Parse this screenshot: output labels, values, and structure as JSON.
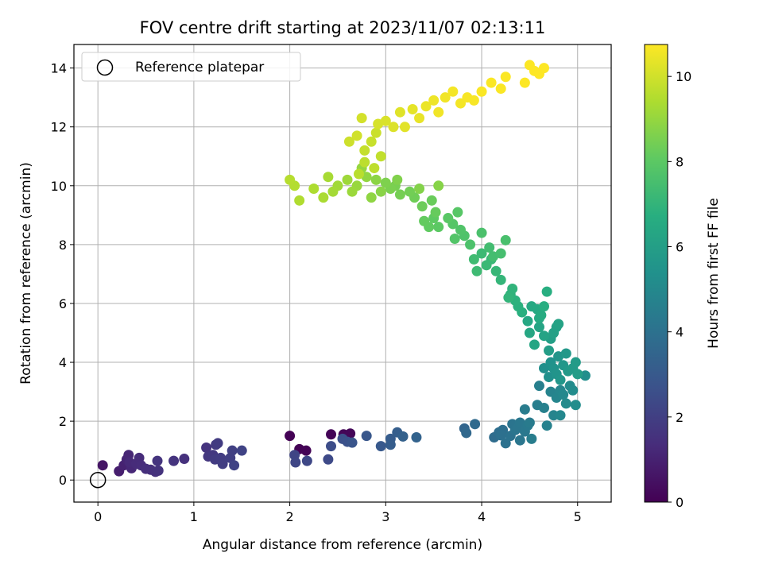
{
  "chart_data": {
    "type": "scatter",
    "title": "FOV centre drift starting at 2023/11/07 02:13:11",
    "xlabel": "Angular distance from reference (arcmin)",
    "ylabel": "Rotation from reference (arcmin)",
    "xlim": [
      -0.25,
      5.35
    ],
    "ylim": [
      -0.75,
      14.8
    ],
    "x_ticks": [
      0,
      1,
      2,
      3,
      4,
      5
    ],
    "y_ticks": [
      0,
      2,
      4,
      6,
      8,
      10,
      12,
      14
    ],
    "grid": true,
    "legend": {
      "label": "Reference platepar",
      "placement": "top-left",
      "marker": "open circle"
    },
    "reference_point": {
      "x": 0,
      "y": 0
    },
    "colorbar": {
      "label": "Hours from first FF file",
      "colormap": "viridis",
      "range": [
        0,
        10.75
      ],
      "ticks": [
        0,
        2,
        4,
        6,
        8,
        10
      ]
    },
    "points": [
      [
        2.0,
        1.5,
        0.02
      ],
      [
        2.1,
        1.05,
        0.05
      ],
      [
        2.17,
        1.0,
        0.08
      ],
      [
        2.43,
        1.55,
        0.1
      ],
      [
        2.56,
        1.55,
        0.12
      ],
      [
        2.63,
        1.58,
        0.15
      ],
      [
        0.05,
        0.5,
        0.6
      ],
      [
        0.22,
        0.3,
        0.9
      ],
      [
        0.27,
        0.5,
        1.0
      ],
      [
        0.3,
        0.7,
        1.1
      ],
      [
        0.32,
        0.85,
        1.15
      ],
      [
        0.35,
        0.4,
        1.2
      ],
      [
        0.33,
        0.6,
        1.25
      ],
      [
        0.4,
        0.55,
        1.3
      ],
      [
        0.43,
        0.75,
        1.3
      ],
      [
        0.45,
        0.5,
        1.35
      ],
      [
        0.5,
        0.38,
        1.4
      ],
      [
        0.55,
        0.35,
        1.45
      ],
      [
        0.6,
        0.28,
        1.5
      ],
      [
        0.63,
        0.32,
        1.55
      ],
      [
        0.62,
        0.65,
        1.6
      ],
      [
        0.79,
        0.65,
        1.6
      ],
      [
        0.9,
        0.72,
        1.5
      ],
      [
        1.13,
        1.1,
        1.6
      ],
      [
        1.15,
        0.8,
        1.7
      ],
      [
        1.2,
        0.85,
        1.75
      ],
      [
        1.23,
        1.2,
        1.8
      ],
      [
        1.25,
        1.25,
        1.85
      ],
      [
        1.22,
        0.7,
        1.85
      ],
      [
        1.28,
        0.75,
        1.9
      ],
      [
        1.3,
        0.55,
        1.95
      ],
      [
        1.38,
        0.75,
        2.0
      ],
      [
        1.4,
        1.0,
        2.05
      ],
      [
        1.42,
        0.5,
        2.1
      ],
      [
        1.5,
        1.0,
        2.15
      ],
      [
        2.05,
        0.85,
        2.2
      ],
      [
        2.06,
        0.6,
        2.25
      ],
      [
        2.18,
        0.65,
        2.3
      ],
      [
        2.4,
        0.7,
        2.4
      ],
      [
        2.43,
        1.15,
        2.5
      ],
      [
        2.55,
        1.4,
        2.6
      ],
      [
        2.6,
        1.3,
        2.7
      ],
      [
        2.65,
        1.27,
        2.8
      ],
      [
        2.8,
        1.5,
        2.9
      ],
      [
        2.95,
        1.15,
        3.0
      ],
      [
        3.05,
        1.4,
        3.1
      ],
      [
        3.05,
        1.2,
        3.15
      ],
      [
        3.12,
        1.62,
        3.2
      ],
      [
        3.18,
        1.48,
        3.3
      ],
      [
        3.32,
        1.45,
        3.4
      ],
      [
        3.82,
        1.75,
        3.5
      ],
      [
        3.84,
        1.6,
        3.6
      ],
      [
        3.93,
        1.9,
        3.7
      ],
      [
        4.13,
        1.45,
        3.8
      ],
      [
        4.18,
        1.62,
        3.85
      ],
      [
        4.22,
        1.7,
        3.9
      ],
      [
        4.2,
        1.52,
        3.95
      ],
      [
        4.25,
        1.25,
        4.0
      ],
      [
        4.3,
        1.5,
        4.05
      ],
      [
        4.32,
        1.9,
        4.1
      ],
      [
        4.35,
        1.7,
        4.15
      ],
      [
        4.38,
        1.8,
        4.2
      ],
      [
        4.4,
        1.35,
        4.2
      ],
      [
        4.4,
        1.95,
        4.25
      ],
      [
        4.45,
        1.65,
        4.3
      ],
      [
        4.48,
        1.85,
        4.35
      ],
      [
        4.5,
        1.95,
        4.4
      ],
      [
        4.45,
        2.4,
        4.45
      ],
      [
        4.52,
        1.4,
        4.5
      ],
      [
        4.58,
        2.55,
        4.55
      ],
      [
        4.6,
        3.2,
        4.6
      ],
      [
        4.65,
        2.45,
        4.65
      ],
      [
        4.68,
        1.85,
        4.7
      ],
      [
        4.72,
        3.0,
        4.75
      ],
      [
        4.75,
        2.2,
        4.8
      ],
      [
        4.78,
        2.8,
        4.85
      ],
      [
        4.82,
        3.05,
        4.9
      ],
      [
        4.82,
        2.2,
        4.95
      ],
      [
        4.85,
        2.9,
        5.0
      ],
      [
        4.88,
        2.6,
        5.05
      ],
      [
        4.92,
        3.2,
        5.1
      ],
      [
        4.95,
        3.05,
        5.15
      ],
      [
        4.98,
        2.55,
        5.2
      ],
      [
        5.08,
        3.55,
        5.25
      ],
      [
        4.65,
        3.8,
        5.3
      ],
      [
        4.7,
        3.5,
        5.35
      ],
      [
        4.72,
        4.0,
        5.4
      ],
      [
        4.75,
        3.8,
        5.45
      ],
      [
        4.78,
        3.6,
        5.5
      ],
      [
        4.8,
        4.2,
        5.55
      ],
      [
        4.82,
        3.4,
        5.6
      ],
      [
        4.85,
        3.9,
        5.65
      ],
      [
        4.88,
        4.3,
        5.7
      ],
      [
        4.9,
        3.7,
        5.75
      ],
      [
        4.95,
        3.8,
        5.8
      ],
      [
        4.98,
        4.0,
        5.85
      ],
      [
        5.0,
        3.6,
        5.9
      ],
      [
        4.7,
        4.4,
        5.95
      ],
      [
        4.72,
        4.8,
        6.0
      ],
      [
        4.75,
        5.0,
        6.05
      ],
      [
        4.78,
        5.2,
        6.1
      ],
      [
        4.8,
        5.3,
        6.15
      ],
      [
        4.65,
        4.9,
        6.2
      ],
      [
        4.6,
        5.2,
        6.25
      ],
      [
        4.55,
        4.6,
        6.3
      ],
      [
        4.5,
        5.0,
        6.35
      ],
      [
        4.48,
        5.4,
        6.4
      ],
      [
        4.52,
        5.9,
        6.45
      ],
      [
        4.58,
        5.8,
        6.5
      ],
      [
        4.6,
        5.5,
        6.55
      ],
      [
        4.62,
        5.6,
        6.6
      ],
      [
        4.65,
        5.9,
        6.65
      ],
      [
        4.68,
        6.4,
        6.7
      ],
      [
        4.42,
        5.7,
        6.75
      ],
      [
        4.38,
        5.9,
        6.8
      ],
      [
        4.35,
        6.1,
        6.85
      ],
      [
        4.3,
        6.3,
        6.9
      ],
      [
        4.32,
        6.5,
        6.95
      ],
      [
        4.28,
        6.2,
        7.0
      ],
      [
        4.2,
        6.8,
        7.05
      ],
      [
        4.15,
        7.1,
        7.1
      ],
      [
        4.1,
        7.5,
        7.15
      ],
      [
        4.05,
        7.3,
        7.2
      ],
      [
        4.0,
        7.7,
        7.25
      ],
      [
        3.95,
        7.1,
        7.3
      ],
      [
        3.92,
        7.5,
        7.35
      ],
      [
        4.08,
        7.9,
        7.4
      ],
      [
        4.12,
        7.6,
        7.45
      ],
      [
        4.2,
        7.7,
        7.5
      ],
      [
        4.25,
        8.15,
        7.55
      ],
      [
        4.0,
        8.4,
        7.6
      ],
      [
        3.88,
        8.0,
        7.65
      ],
      [
        3.82,
        8.3,
        7.7
      ],
      [
        3.78,
        8.5,
        7.75
      ],
      [
        3.72,
        8.2,
        7.8
      ],
      [
        3.7,
        8.7,
        7.85
      ],
      [
        3.75,
        9.1,
        7.9
      ],
      [
        3.65,
        8.9,
        7.95
      ],
      [
        3.55,
        8.6,
        8.0
      ],
      [
        3.5,
        8.9,
        8.05
      ],
      [
        3.45,
        8.6,
        8.1
      ],
      [
        3.4,
        8.8,
        8.15
      ],
      [
        3.52,
        9.1,
        8.2
      ],
      [
        3.48,
        9.5,
        8.25
      ],
      [
        3.38,
        9.3,
        8.3
      ],
      [
        3.3,
        9.6,
        8.35
      ],
      [
        3.25,
        9.8,
        8.4
      ],
      [
        3.15,
        9.7,
        8.45
      ],
      [
        3.1,
        10.0,
        8.5
      ],
      [
        3.05,
        9.9,
        8.55
      ],
      [
        3.0,
        10.1,
        8.6
      ],
      [
        3.12,
        10.2,
        8.65
      ],
      [
        3.35,
        9.9,
        8.7
      ],
      [
        3.55,
        10.0,
        8.75
      ],
      [
        2.95,
        9.8,
        8.8
      ],
      [
        2.9,
        10.2,
        8.85
      ],
      [
        2.85,
        9.6,
        8.9
      ],
      [
        2.8,
        10.3,
        8.95
      ],
      [
        2.75,
        10.6,
        9.0
      ],
      [
        2.7,
        10.0,
        9.05
      ],
      [
        2.65,
        9.8,
        9.1
      ],
      [
        2.6,
        10.2,
        9.15
      ],
      [
        2.5,
        10.0,
        9.2
      ],
      [
        2.45,
        9.8,
        9.25
      ],
      [
        2.4,
        10.3,
        9.3
      ],
      [
        2.35,
        9.6,
        9.35
      ],
      [
        2.25,
        9.9,
        9.4
      ],
      [
        2.1,
        9.5,
        9.45
      ],
      [
        2.05,
        10.0,
        9.5
      ],
      [
        2.0,
        10.2,
        9.55
      ],
      [
        2.72,
        10.4,
        9.6
      ],
      [
        2.78,
        10.8,
        9.65
      ],
      [
        2.88,
        10.6,
        9.7
      ],
      [
        2.95,
        11.0,
        9.75
      ],
      [
        2.78,
        11.2,
        9.8
      ],
      [
        2.85,
        11.5,
        9.85
      ],
      [
        2.9,
        11.8,
        9.9
      ],
      [
        2.62,
        11.5,
        9.95
      ],
      [
        2.7,
        11.7,
        10.0
      ],
      [
        2.75,
        12.3,
        10.05
      ],
      [
        2.92,
        12.1,
        10.1
      ],
      [
        3.0,
        12.2,
        10.15
      ],
      [
        3.08,
        12.0,
        10.2
      ],
      [
        3.15,
        12.5,
        10.25
      ],
      [
        3.2,
        12.0,
        10.3
      ],
      [
        3.28,
        12.6,
        10.35
      ],
      [
        3.35,
        12.3,
        10.4
      ],
      [
        3.42,
        12.7,
        10.45
      ],
      [
        3.5,
        12.9,
        10.5
      ],
      [
        3.55,
        12.5,
        10.55
      ],
      [
        3.62,
        13.0,
        10.55
      ],
      [
        3.7,
        13.2,
        10.6
      ],
      [
        3.78,
        12.8,
        10.6
      ],
      [
        3.85,
        13.0,
        10.65
      ],
      [
        3.92,
        12.9,
        10.65
      ],
      [
        4.0,
        13.2,
        10.7
      ],
      [
        4.1,
        13.5,
        10.7
      ],
      [
        4.2,
        13.3,
        10.7
      ],
      [
        4.25,
        13.7,
        10.72
      ],
      [
        4.45,
        13.5,
        10.73
      ],
      [
        4.5,
        14.1,
        10.74
      ],
      [
        4.55,
        13.9,
        10.75
      ],
      [
        4.6,
        13.8,
        10.75
      ],
      [
        4.65,
        14.0,
        10.75
      ]
    ]
  }
}
